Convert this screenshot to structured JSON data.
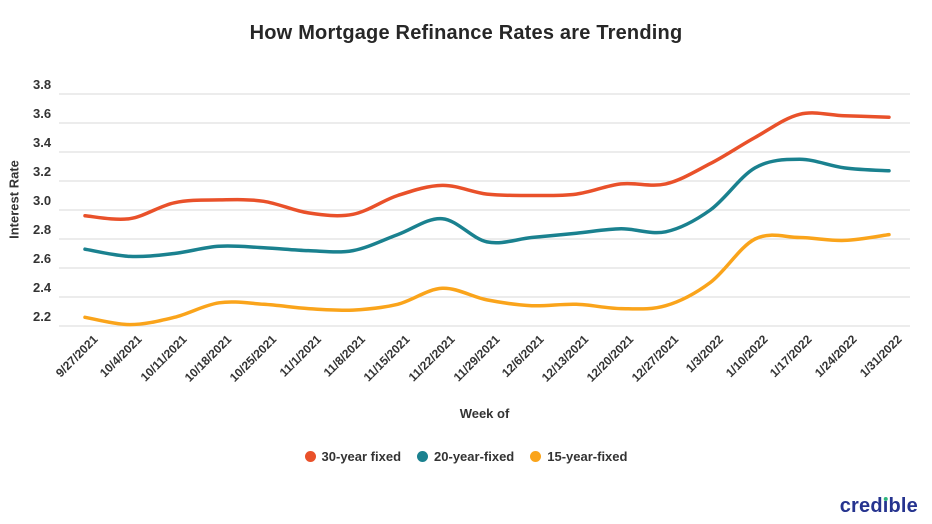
{
  "title": "How Mortgage Refinance Rates are Trending",
  "logo": {
    "text": "credible"
  },
  "chart_data": {
    "type": "line",
    "title": "How Mortgage Refinance Rates are Trending",
    "xlabel": "Week of",
    "ylabel": "Interest Rate",
    "ylim": [
      2.2,
      3.8
    ],
    "y_tick_step": 0.2,
    "y_tick_labels": [
      "2.2",
      "2.4",
      "2.6",
      "2.8",
      "3.0",
      "3.2",
      "3.4",
      "3.6",
      "3.8"
    ],
    "grid": "horizontal",
    "legend_position": "bottom",
    "line_style": "smooth",
    "categories": [
      "9/27/2021",
      "10/4/2021",
      "10/11/2021",
      "10/18/2021",
      "10/25/2021",
      "11/1/2021",
      "11/8/2021",
      "11/15/2021",
      "11/22/2021",
      "11/29/2021",
      "12/6/2021",
      "12/13/2021",
      "12/20/2021",
      "12/27/2021",
      "1/3/2022",
      "1/10/2022",
      "1/17/2022",
      "1/24/2022",
      "1/31/2022"
    ],
    "series": [
      {
        "name": "30-year fixed",
        "color": "#E9512A",
        "values": [
          2.96,
          2.94,
          3.05,
          3.07,
          3.06,
          2.98,
          2.97,
          3.1,
          3.17,
          3.11,
          3.1,
          3.11,
          3.18,
          3.18,
          3.32,
          3.5,
          3.66,
          3.65,
          3.64
        ]
      },
      {
        "name": "20-year-fixed",
        "color": "#1A818F",
        "values": [
          2.73,
          2.68,
          2.7,
          2.75,
          2.74,
          2.72,
          2.72,
          2.83,
          2.94,
          2.78,
          2.81,
          2.84,
          2.87,
          2.85,
          3.0,
          3.29,
          3.35,
          3.29,
          3.27
        ]
      },
      {
        "name": "15-year-fixed",
        "color": "#FAA41B",
        "values": [
          2.26,
          2.21,
          2.26,
          2.36,
          2.35,
          2.32,
          2.31,
          2.35,
          2.46,
          2.38,
          2.34,
          2.35,
          2.32,
          2.34,
          2.5,
          2.8,
          2.81,
          2.79,
          2.83
        ]
      }
    ]
  }
}
